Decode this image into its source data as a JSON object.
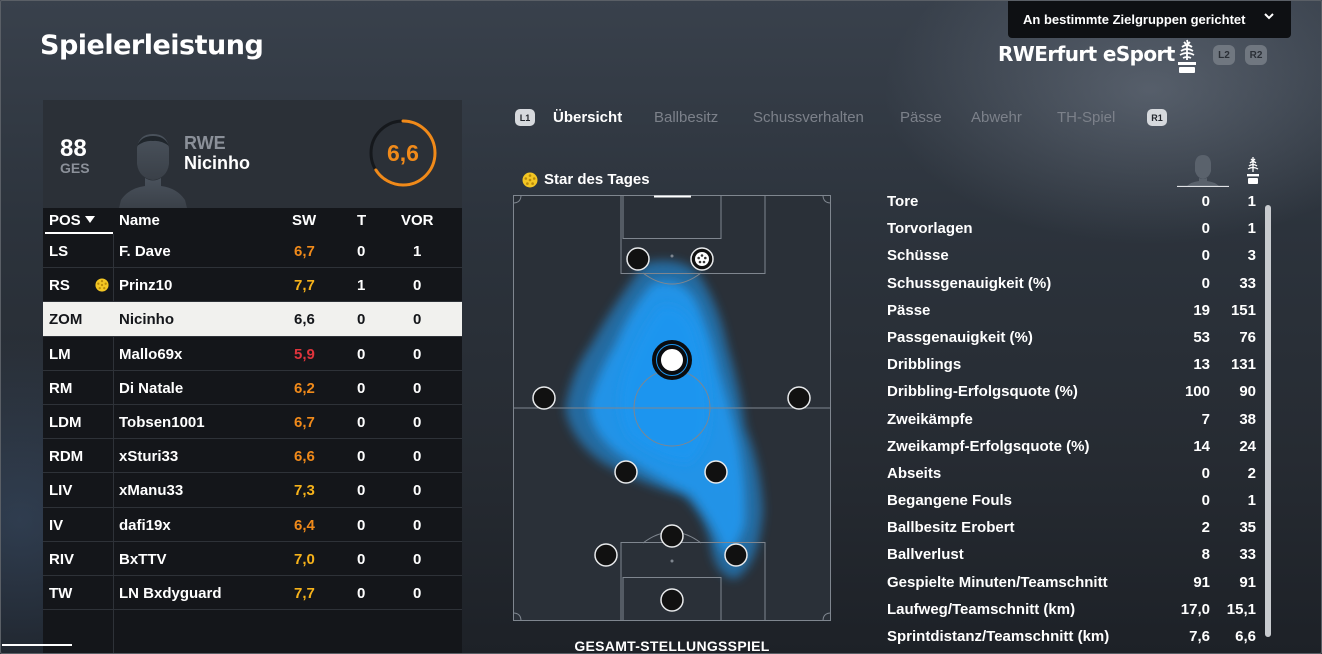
{
  "header": {
    "title": "Spielerleistung",
    "audience_dropdown": "An bestimmte Zielgruppen gerichtet",
    "team_name": "RWErfurt eSport",
    "btn_l2": "L2",
    "btn_r2": "R2"
  },
  "player_card": {
    "ges_value": "88",
    "ges_label": "GES",
    "club": "RWE",
    "name": "Nicinho",
    "rating": "6,6",
    "rating_fraction": 0.66
  },
  "table": {
    "headers": {
      "pos": "POS",
      "name": "Name",
      "sw": "SW",
      "t": "T",
      "vor": "VOR"
    },
    "rows": [
      {
        "pos": "LS",
        "name": "F. Dave",
        "sw": "6,7",
        "t": "0",
        "vor": "1",
        "sw_color": "#f08a1a",
        "star": false,
        "selected": false
      },
      {
        "pos": "RS",
        "name": "Prinz10",
        "sw": "7,7",
        "t": "1",
        "vor": "0",
        "sw_color": "#f6b21a",
        "star": true,
        "selected": false
      },
      {
        "pos": "ZOM",
        "name": "Nicinho",
        "sw": "6,6",
        "t": "0",
        "vor": "0",
        "sw_color": "#14161a",
        "star": false,
        "selected": true
      },
      {
        "pos": "LM",
        "name": "Mallo69x",
        "sw": "5,9",
        "t": "0",
        "vor": "0",
        "sw_color": "#e0343c",
        "star": false,
        "selected": false
      },
      {
        "pos": "RM",
        "name": "Di Natale",
        "sw": "6,2",
        "t": "0",
        "vor": "0",
        "sw_color": "#f08a1a",
        "star": false,
        "selected": false
      },
      {
        "pos": "LDM",
        "name": "Tobsen1001",
        "sw": "6,7",
        "t": "0",
        "vor": "0",
        "sw_color": "#f08a1a",
        "star": false,
        "selected": false
      },
      {
        "pos": "RDM",
        "name": "xSturi33",
        "sw": "6,6",
        "t": "0",
        "vor": "0",
        "sw_color": "#f08a1a",
        "star": false,
        "selected": false
      },
      {
        "pos": "LIV",
        "name": "xManu33",
        "sw": "7,3",
        "t": "0",
        "vor": "0",
        "sw_color": "#f6b21a",
        "star": false,
        "selected": false
      },
      {
        "pos": "IV",
        "name": "dafi19x",
        "sw": "6,4",
        "t": "0",
        "vor": "0",
        "sw_color": "#f08a1a",
        "star": false,
        "selected": false
      },
      {
        "pos": "RIV",
        "name": "BxTTV",
        "sw": "7,0",
        "t": "0",
        "vor": "0",
        "sw_color": "#f6b21a",
        "star": false,
        "selected": false
      },
      {
        "pos": "TW",
        "name": "LN Bxdyguard",
        "sw": "7,7",
        "t": "0",
        "vor": "0",
        "sw_color": "#f6b21a",
        "star": false,
        "selected": false
      }
    ]
  },
  "tabs": {
    "l1": "L1",
    "r1": "R1",
    "items": [
      "Übersicht",
      "Ballbesitz",
      "Schussverhalten",
      "Pässe",
      "Abwehr",
      "TH-Spiel"
    ],
    "active_index": 0
  },
  "pitch": {
    "star_of_day": "Star des Tages",
    "caption": "GESAMT-STELLUNGSSPIEL"
  },
  "stats": [
    {
      "label": "Tore",
      "player": "0",
      "team": "1"
    },
    {
      "label": "Torvorlagen",
      "player": "0",
      "team": "1"
    },
    {
      "label": "Schüsse",
      "player": "0",
      "team": "3"
    },
    {
      "label": "Schussgenauigkeit (%)",
      "player": "0",
      "team": "33"
    },
    {
      "label": "Pässe",
      "player": "19",
      "team": "151"
    },
    {
      "label": "Passgenauigkeit (%)",
      "player": "53",
      "team": "76"
    },
    {
      "label": "Dribblings",
      "player": "13",
      "team": "131"
    },
    {
      "label": "Dribbling-Erfolgsquote (%)",
      "player": "100",
      "team": "90"
    },
    {
      "label": "Zweikämpfe",
      "player": "7",
      "team": "38"
    },
    {
      "label": "Zweikampf-Erfolgsquote (%)",
      "player": "14",
      "team": "24"
    },
    {
      "label": "Abseits",
      "player": "0",
      "team": "2"
    },
    {
      "label": "Begangene Fouls",
      "player": "0",
      "team": "1"
    },
    {
      "label": "Ballbesitz Erobert",
      "player": "2",
      "team": "35"
    },
    {
      "label": "Ballverlust",
      "player": "8",
      "team": "33"
    },
    {
      "label": "Gespielte Minuten/Teamschnitt",
      "player": "91",
      "team": "91"
    },
    {
      "label": "Laufweg/Teamschnitt (km)",
      "player": "17,0",
      "team": "15,1"
    },
    {
      "label": "Sprintdistanz/Teamschnitt (km)",
      "player": "7,6",
      "team": "6,6"
    }
  ],
  "icons": {
    "dropdown": "chevron-down-icon",
    "crest": "club-crest-icon",
    "star": "star-of-day-icon",
    "avatar": "player-silhouette-icon",
    "sort": "sort-desc-icon"
  },
  "colors": {
    "accent_orange": "#f08a1a",
    "gold": "#f6b21a",
    "red": "#e0343c",
    "heatmap": "#1e96f0"
  }
}
